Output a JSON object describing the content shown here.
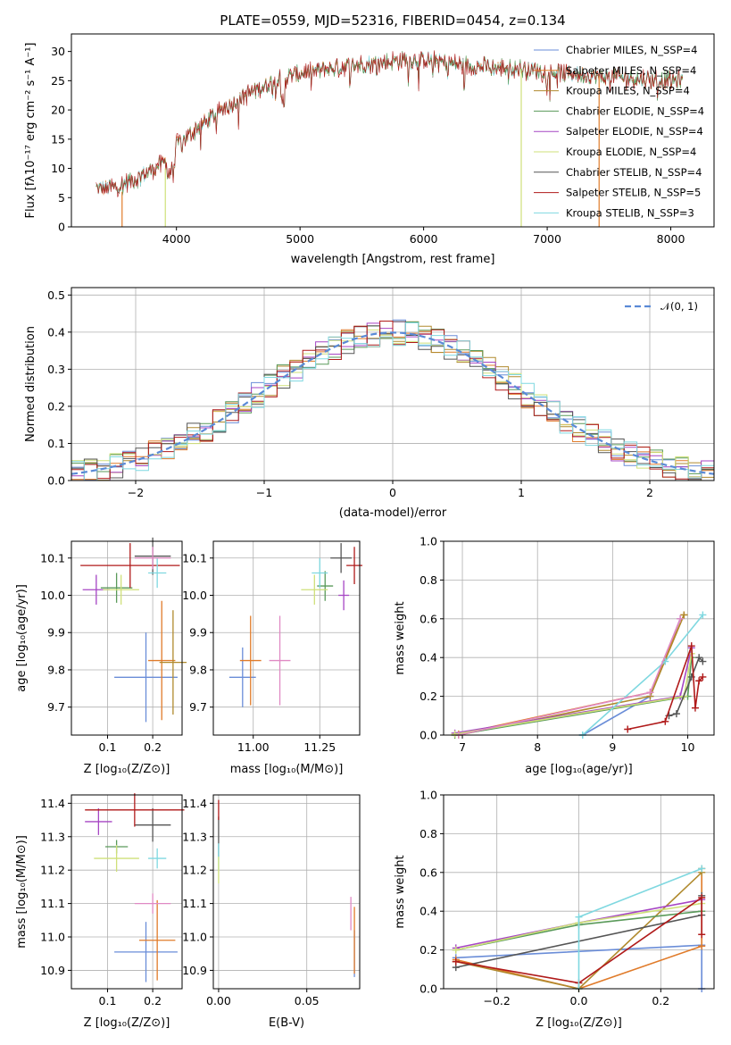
{
  "colors": {
    "chabrier_miles": "#6a8dd8",
    "salpeter_miles": "#e07b2a",
    "kroupa_miles": "#b08a2e",
    "chabrier_elodie": "#5a9a5a",
    "salpeter_elodie": "#a646c4",
    "kroupa_elodie": "#cfe07a",
    "chabrier_stelib": "#555555",
    "salpeter_stelib": "#b01a1a",
    "kroupa_stelib": "#7fd8e0",
    "normal_curve": "#5a8ad6",
    "extra_pink": "#e08ac4"
  },
  "chart_data": [
    {
      "type": "line",
      "title": "PLATE=0559, MJD=52316, FIBERID=0454, z=0.134",
      "xlabel": "wavelength [Angstrom, rest frame]",
      "ylabel": "Flux [fλ10⁻¹⁷ erg cm⁻² s⁻¹ A⁻¹]",
      "xlim": [
        3150,
        8350
      ],
      "ylim": [
        0,
        33
      ],
      "xticks": [
        "4000",
        "5000",
        "6000",
        "7000",
        "8000"
      ],
      "yticks": [
        "0",
        "5",
        "10",
        "15",
        "20",
        "25",
        "30"
      ],
      "grid": false,
      "legend_position": "top-right",
      "legend": [
        "Chabrier MILES, N_SSP=4",
        "Salpeter MILES, N_SSP=4",
        "Kroupa MILES, N_SSP=4",
        "Chabrier ELODIE, N_SSP=4",
        "Salpeter ELODIE, N_SSP=4",
        "Kroupa ELODIE, N_SSP=4",
        "Chabrier STELIB, N_SSP=4",
        "Salpeter STELIB, N_SSP=5",
        "Kroupa STELIB, N_SSP=3"
      ],
      "continuum": {
        "x": [
          3350,
          3500,
          3700,
          3900,
          4000,
          4200,
          4400,
          4600,
          4800,
          5000,
          5200,
          5400,
          5600,
          5800,
          6000,
          6200,
          6400,
          6600,
          6800,
          7000,
          7200,
          7400,
          7600,
          7800,
          8000,
          8100
        ],
        "y": [
          6.5,
          6.8,
          8.5,
          11.0,
          14.0,
          17.5,
          20.5,
          23.0,
          25.0,
          26.3,
          27.0,
          27.5,
          28.0,
          28.5,
          28.6,
          28.0,
          27.5,
          27.3,
          27.0,
          26.5,
          26.2,
          25.8,
          25.5,
          25.3,
          25.0,
          25.2
        ]
      },
      "spikes": [
        {
          "x": 3560,
          "from": 6.0,
          "to": 0
        },
        {
          "x": 3910,
          "from": 10.0,
          "to": 0
        },
        {
          "x": 6790,
          "from": 27.0,
          "to": 0
        },
        {
          "x": 7420,
          "from": 25.8,
          "to": 0
        }
      ]
    },
    {
      "type": "bar",
      "xlabel": "(data-model)/error",
      "ylabel": "Normed distribution",
      "xlim": [
        -2.5,
        2.5
      ],
      "ylim": [
        0,
        0.52
      ],
      "xticks": [
        "−2",
        "−1",
        "0",
        "1",
        "2"
      ],
      "yticks": [
        "0.0",
        "0.1",
        "0.2",
        "0.3",
        "0.4",
        "0.5"
      ],
      "grid": true,
      "legend_position": "top-right",
      "legend": [
        "𝒩(0, 1)"
      ],
      "bin_width": 0.1,
      "n_bins": 50,
      "reference_curve": "normal pdf mean 0 sigma 1"
    },
    {
      "type": "scatter",
      "xlabel": "Z [log₁₀(Z/Z⊙)]",
      "ylabel": "age  [log₁₀(age/yr)]",
      "xlim": [
        0.02,
        0.265
      ],
      "ylim": [
        9.625,
        10.145
      ],
      "xticks": [
        "0.1",
        "0.2"
      ],
      "yticks": [
        "9.7",
        "9.8",
        "9.9",
        "10.0",
        "10.1"
      ],
      "grid": true,
      "points": [
        {
          "series": "chabrier_miles",
          "x": 0.185,
          "xerr": 0.07,
          "y": 9.78,
          "yerr": 0.12
        },
        {
          "series": "salpeter_miles",
          "x": 0.22,
          "xerr": 0.03,
          "y": 9.825,
          "yerr": 0.16
        },
        {
          "series": "kroupa_miles",
          "x": 0.245,
          "xerr": 0.03,
          "y": 9.82,
          "yerr": 0.14
        },
        {
          "series": "chabrier_elodie",
          "x": 0.12,
          "xerr": 0.035,
          "y": 10.02,
          "yerr": 0.04
        },
        {
          "series": "salpeter_elodie",
          "x": 0.075,
          "xerr": 0.03,
          "y": 10.015,
          "yerr": 0.04
        },
        {
          "series": "kroupa_elodie",
          "x": 0.13,
          "xerr": 0.04,
          "y": 10.015,
          "yerr": 0.04
        },
        {
          "series": "chabrier_stelib",
          "x": 0.2,
          "xerr": 0.04,
          "y": 10.105,
          "yerr": 0.05
        },
        {
          "series": "salpeter_stelib",
          "x": 0.15,
          "xerr": 0.11,
          "y": 10.08,
          "yerr": 0.06
        },
        {
          "series": "kroupa_stelib",
          "x": 0.21,
          "xerr": 0.02,
          "y": 10.06,
          "yerr": 0.04
        },
        {
          "series": "extra_pink",
          "x": 0.2,
          "xerr": 0.04,
          "y": 10.1,
          "yerr": 0.03
        }
      ]
    },
    {
      "type": "scatter",
      "xlabel": "mass [log₁₀(M/M⊙)]",
      "ylabel": "",
      "xlim": [
        10.85,
        11.4
      ],
      "ylim": [
        9.625,
        10.145
      ],
      "xticks": [
        "11.00",
        "11.25"
      ],
      "yticks": [
        "9.7",
        "9.8",
        "9.9",
        "10.0",
        "10.1"
      ],
      "grid": true,
      "points": [
        {
          "series": "chabrier_miles",
          "x": 10.96,
          "xerr": 0.05,
          "y": 9.78,
          "yerr": 0.08
        },
        {
          "series": "salpeter_miles",
          "x": 10.99,
          "xerr": 0.04,
          "y": 9.825,
          "yerr": 0.12
        },
        {
          "series": "extra_pink",
          "x": 11.1,
          "xerr": 0.04,
          "y": 9.825,
          "yerr": 0.12
        },
        {
          "series": "chabrier_elodie",
          "x": 11.27,
          "xerr": 0.03,
          "y": 10.025,
          "yerr": 0.04
        },
        {
          "series": "salpeter_elodie",
          "x": 11.34,
          "xerr": 0.02,
          "y": 10.0,
          "yerr": 0.04
        },
        {
          "series": "kroupa_elodie",
          "x": 11.23,
          "xerr": 0.05,
          "y": 10.015,
          "yerr": 0.04
        },
        {
          "series": "chabrier_stelib",
          "x": 11.33,
          "xerr": 0.04,
          "y": 10.1,
          "yerr": 0.04
        },
        {
          "series": "salpeter_stelib",
          "x": 11.38,
          "xerr": 0.03,
          "y": 10.08,
          "yerr": 0.05
        },
        {
          "series": "kroupa_stelib",
          "x": 11.25,
          "xerr": 0.03,
          "y": 10.06,
          "yerr": 0.04
        }
      ]
    },
    {
      "type": "line",
      "xlabel": "age  [log₁₀(age/yr)]",
      "ylabel": "mass weight",
      "xlim": [
        6.75,
        10.35
      ],
      "ylim": [
        0,
        1.0
      ],
      "xticks": [
        "7",
        "8",
        "9",
        "10"
      ],
      "yticks": [
        "0.0",
        "0.2",
        "0.4",
        "0.6",
        "0.8",
        "1.0"
      ],
      "grid": true,
      "series": [
        {
          "key": "chabrier_miles",
          "x": [
            8.6,
            9.5,
            9.9
          ],
          "y": [
            0.0,
            0.2,
            0.6
          ]
        },
        {
          "key": "salpeter_miles",
          "x": [
            6.95,
            9.5,
            9.95
          ],
          "y": [
            0.005,
            0.22,
            0.62
          ]
        },
        {
          "key": "kroupa_miles",
          "x": [
            6.95,
            9.5,
            9.95
          ],
          "y": [
            0.0,
            0.2,
            0.62
          ]
        },
        {
          "key": "chabrier_elodie",
          "x": [
            6.9,
            10.0,
            10.05
          ],
          "y": [
            0.0,
            0.2,
            0.4
          ]
        },
        {
          "key": "salpeter_elodie",
          "x": [
            6.9,
            9.9,
            10.05
          ],
          "y": [
            0.01,
            0.2,
            0.45
          ]
        },
        {
          "key": "kroupa_elodie",
          "x": [
            6.9,
            9.95,
            10.05
          ],
          "y": [
            0.005,
            0.2,
            0.42
          ]
        },
        {
          "key": "chabrier_stelib",
          "x": [
            9.75,
            9.85,
            10.05,
            10.15,
            10.2
          ],
          "y": [
            0.1,
            0.11,
            0.3,
            0.4,
            0.38
          ]
        },
        {
          "key": "salpeter_stelib",
          "x": [
            9.2,
            9.7,
            10.05,
            10.1,
            10.15,
            10.2
          ],
          "y": [
            0.03,
            0.07,
            0.46,
            0.14,
            0.28,
            0.3
          ]
        },
        {
          "key": "kroupa_stelib",
          "x": [
            8.6,
            9.7,
            10.2
          ],
          "y": [
            0.0,
            0.38,
            0.62
          ]
        },
        {
          "key": "extra_pink",
          "x": [
            6.95,
            9.5,
            9.9
          ],
          "y": [
            0.0,
            0.22,
            0.6
          ]
        }
      ]
    },
    {
      "type": "scatter",
      "xlabel": "Z [log₁₀(Z/Z⊙)]",
      "ylabel": "mass [log₁₀(M/M⊙)]",
      "xlim": [
        0.02,
        0.265
      ],
      "ylim": [
        10.845,
        11.425
      ],
      "xticks": [
        "0.1",
        "0.2"
      ],
      "yticks": [
        "10.9",
        "11.0",
        "11.1",
        "11.2",
        "11.3",
        "11.4"
      ],
      "grid": true,
      "points": [
        {
          "series": "chabrier_miles",
          "x": 0.185,
          "xerr": 0.07,
          "y": 10.955,
          "yerr": 0.09
        },
        {
          "series": "salpeter_miles",
          "x": 0.21,
          "xerr": 0.04,
          "y": 10.99,
          "yerr": 0.12
        },
        {
          "series": "extra_pink",
          "x": 0.2,
          "xerr": 0.04,
          "y": 11.1,
          "yerr": 0.03
        },
        {
          "series": "chabrier_elodie",
          "x": 0.12,
          "xerr": 0.025,
          "y": 11.27,
          "yerr": 0.02
        },
        {
          "series": "salpeter_elodie",
          "x": 0.08,
          "xerr": 0.03,
          "y": 11.345,
          "yerr": 0.04
        },
        {
          "series": "kroupa_elodie",
          "x": 0.12,
          "xerr": 0.05,
          "y": 11.235,
          "yerr": 0.04
        },
        {
          "series": "chabrier_stelib",
          "x": 0.2,
          "xerr": 0.04,
          "y": 11.335,
          "yerr": 0.05
        },
        {
          "series": "salpeter_stelib",
          "x": 0.16,
          "xerr": 0.11,
          "y": 11.38,
          "yerr": 0.05
        },
        {
          "series": "kroupa_stelib",
          "x": 0.21,
          "xerr": 0.02,
          "y": 11.235,
          "yerr": 0.03
        }
      ]
    },
    {
      "type": "scatter",
      "xlabel": "E(B-V)",
      "ylabel": "",
      "xlim": [
        -0.003,
        0.08
      ],
      "ylim": [
        10.845,
        11.425
      ],
      "xticks": [
        "0.00",
        "0.05"
      ],
      "yticks": [
        "10.9",
        "11.0",
        "11.1",
        "11.2",
        "11.3",
        "11.4"
      ],
      "grid": true,
      "points": [
        {
          "series": "chabrier_stelib",
          "x": 0.0,
          "xerr": 0,
          "y": 11.3,
          "yerr": 0.06
        },
        {
          "series": "salpeter_stelib",
          "x": 0.0,
          "xerr": 0,
          "y": 11.38,
          "yerr": 0.03
        },
        {
          "series": "kroupa_stelib",
          "x": 0.0,
          "xerr": 0,
          "y": 11.24,
          "yerr": 0.04
        },
        {
          "series": "kroupa_elodie",
          "x": 0.0,
          "xerr": 0,
          "y": 11.2,
          "yerr": 0.04
        },
        {
          "series": "extra_pink",
          "x": 0.075,
          "xerr": 0,
          "y": 11.07,
          "yerr": 0.05
        },
        {
          "series": "chabrier_miles",
          "x": 0.077,
          "xerr": 0,
          "y": 10.95,
          "yerr": 0.07
        },
        {
          "series": "salpeter_miles",
          "x": 0.077,
          "xerr": 0,
          "y": 10.99,
          "yerr": 0.1
        }
      ]
    },
    {
      "type": "line",
      "xlabel": "Z [log₁₀(Z/Z⊙)]",
      "ylabel": "mass weight",
      "xlim": [
        -0.33,
        0.33
      ],
      "ylim": [
        0,
        1.0
      ],
      "xticks": [
        "−0.2",
        "0.0",
        "0.2"
      ],
      "yticks": [
        "0.0",
        "0.2",
        "0.4",
        "0.6",
        "0.8",
        "1.0"
      ],
      "grid": true,
      "series": [
        {
          "key": "chabrier_miles",
          "x": [
            -0.3,
            0.3,
            0.3
          ],
          "y": [
            0.16,
            0.225,
            0.0
          ]
        },
        {
          "key": "salpeter_miles",
          "x": [
            -0.3,
            0.0,
            0.3,
            0.3
          ],
          "y": [
            0.15,
            0.0,
            0.22,
            0.62
          ]
        },
        {
          "key": "kroupa_miles",
          "x": [
            -0.3,
            0.0,
            0.3
          ],
          "y": [
            0.14,
            0.0,
            0.6
          ]
        },
        {
          "key": "chabrier_elodie",
          "x": [
            -0.3,
            0.0,
            0.3
          ],
          "y": [
            0.2,
            0.33,
            0.4
          ]
        },
        {
          "key": "salpeter_elodie",
          "x": [
            -0.3,
            0.0,
            0.3
          ],
          "y": [
            0.21,
            0.34,
            0.46
          ]
        },
        {
          "key": "kroupa_elodie",
          "x": [
            -0.3,
            0.0,
            0.3
          ],
          "y": [
            0.2,
            0.34,
            0.44
          ]
        },
        {
          "key": "chabrier_stelib",
          "x": [
            -0.3,
            0.3,
            0.3
          ],
          "y": [
            0.11,
            0.38,
            0.48
          ]
        },
        {
          "key": "salpeter_stelib",
          "x": [
            -0.3,
            0.0,
            0.3,
            0.3
          ],
          "y": [
            0.14,
            0.03,
            0.47,
            0.28
          ]
        },
        {
          "key": "kroupa_stelib",
          "x": [
            0.0,
            0.0,
            0.3
          ],
          "y": [
            0.0,
            0.37,
            0.62
          ]
        }
      ]
    }
  ]
}
